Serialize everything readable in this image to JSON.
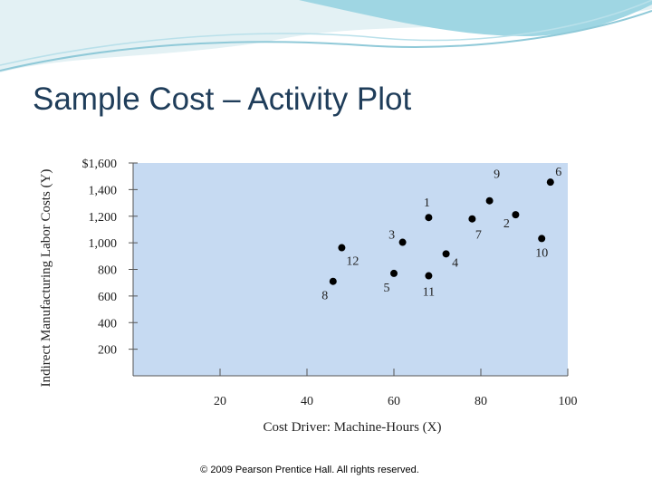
{
  "slide_title": "Sample Cost – Activity Plot",
  "footer": "© 2009 Pearson Prentice Hall. All rights reserved.",
  "chart_data": {
    "type": "scatter",
    "x_label": "Cost Driver: Machine-Hours (X)",
    "y_label": "Indirect Manufacturing Labor Costs (Y)",
    "labels": [
      "1",
      "2",
      "3",
      "4",
      "5",
      "6",
      "7",
      "8",
      "9",
      "10",
      "11",
      "12"
    ],
    "x": [
      68,
      88,
      62,
      72,
      60,
      96,
      78,
      46,
      82,
      94,
      68,
      48
    ],
    "values": [
      1190,
      1211,
      1004,
      917,
      770,
      1456,
      1180,
      710,
      1316,
      1032,
      752,
      963
    ],
    "color": "#000000",
    "xlim": [
      0,
      100
    ],
    "xticks": [
      20,
      40,
      60,
      80,
      100
    ],
    "ylim": [
      0,
      1600
    ],
    "yticks": [
      {
        "value": 200,
        "label": "200"
      },
      {
        "value": 400,
        "label": "400"
      },
      {
        "value": 600,
        "label": "600"
      },
      {
        "value": 800,
        "label": "800"
      },
      {
        "value": 1000,
        "label": "1,000"
      },
      {
        "value": 1200,
        "label": "1,200"
      },
      {
        "value": 1400,
        "label": "1,400"
      },
      {
        "value": 1600,
        "label": "$1,600"
      }
    ],
    "plot_background": "#c6daf2"
  }
}
